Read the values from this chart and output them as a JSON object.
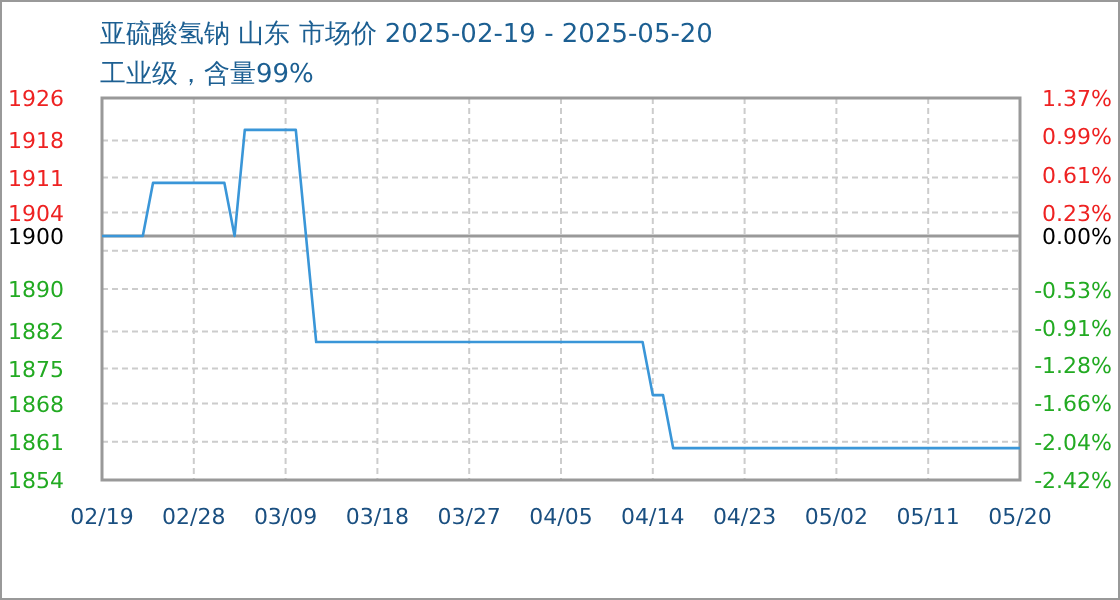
{
  "chart_data": {
    "type": "line",
    "title": "亚硫酸氢钠 山东 市场价 2025-02-19 - 2025-05-20",
    "subtitle": "工业级，含量99%",
    "x": [
      "2025-02-19",
      "2025-02-23",
      "2025-02-24",
      "2025-03-03",
      "2025-03-04",
      "2025-03-05",
      "2025-03-10",
      "2025-03-11",
      "2025-03-12",
      "2025-04-13",
      "2025-04-14",
      "2025-04-15",
      "2025-04-16",
      "2025-05-20"
    ],
    "series": [
      {
        "color": "#3a96d8",
        "values": [
          1900,
          1900,
          1910,
          1910,
          1900,
          1920,
          1920,
          1900,
          1880,
          1880,
          1870,
          1870,
          1860,
          1860
        ]
      }
    ],
    "xlim": [
      "2025-02-19",
      "2025-05-20"
    ],
    "xticks": [
      {
        "value": "2025-02-19",
        "label": "02/19"
      },
      {
        "value": "2025-02-28",
        "label": "02/28"
      },
      {
        "value": "2025-03-09",
        "label": "03/09"
      },
      {
        "value": "2025-03-18",
        "label": "03/18"
      },
      {
        "value": "2025-03-27",
        "label": "03/27"
      },
      {
        "value": "2025-04-05",
        "label": "04/05"
      },
      {
        "value": "2025-04-14",
        "label": "04/14"
      },
      {
        "value": "2025-04-23",
        "label": "04/23"
      },
      {
        "value": "2025-05-02",
        "label": "05/02"
      },
      {
        "value": "2025-05-11",
        "label": "05/11"
      },
      {
        "value": "2025-05-20",
        "label": "05/20"
      }
    ],
    "ylim": [
      1854,
      1926
    ],
    "yticks": [
      1854,
      {
        "value": 1861.2,
        "label": "1861"
      },
      {
        "value": 1868.4,
        "label": "1868"
      },
      1875,
      1882,
      1890,
      {
        "value": 1897.2,
        "label": null
      },
      {
        "value": 1904.4,
        "label": "1904"
      },
      1911,
      1918,
      1926
    ],
    "y2lim": [
      -2.42,
      1.37
    ],
    "y2ticks": [
      {
        "value": -2.42,
        "label": "-2.42%"
      },
      {
        "value": -2.04,
        "label": "-2.04%"
      },
      {
        "value": -1.66,
        "label": "-1.66%"
      },
      {
        "value": -1.28,
        "label": "-1.28%"
      },
      {
        "value": -0.91,
        "label": "-0.91%"
      },
      {
        "value": -0.53,
        "label": "-0.53%"
      },
      {
        "value": 0,
        "label": "0.00%"
      },
      {
        "value": 0.23,
        "label": "0.23%"
      },
      {
        "value": 0.61,
        "label": "0.61%"
      },
      {
        "value": 0.99,
        "label": "0.99%"
      },
      {
        "value": 1.37,
        "label": "1.37%"
      }
    ],
    "ref_lines": [
      {
        "axis": "y",
        "value": 1900,
        "label": "1900",
        "color": "#999999"
      }
    ],
    "grid": true,
    "marker": "none",
    "line_style": "solid"
  }
}
